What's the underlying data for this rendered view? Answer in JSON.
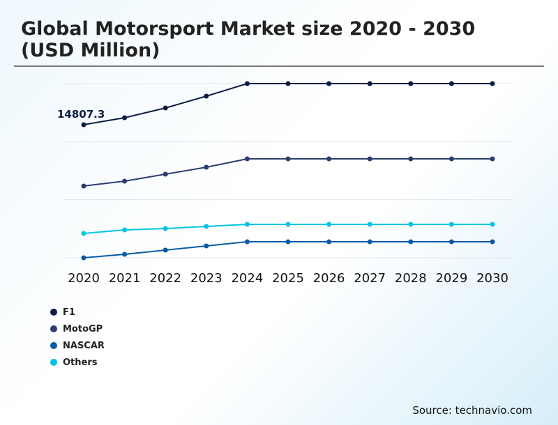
{
  "title": "Global Motorsport Market size 2020 - 2030 (USD Million)",
  "source": "Source: technavio.com",
  "chart_data": {
    "type": "line",
    "title": "Global Motorsport Market size 2020 - 2030 (USD Million)",
    "xlabel": "",
    "ylabel": "",
    "categories": [
      "2020",
      "2021",
      "2022",
      "2023",
      "2024",
      "2025",
      "2026",
      "2027",
      "2028",
      "2029",
      "2030"
    ],
    "ylim": [
      0,
      19380
    ],
    "grid": true,
    "legend_placement": "bottom-left",
    "annotation": "14807.3",
    "series": [
      {
        "name": "F1",
        "color": "#0b1d45",
        "values": [
          14807.3,
          15582,
          16667,
          17985,
          19380,
          19380,
          19380,
          19380,
          19380,
          19380,
          19380
        ]
      },
      {
        "name": "MotoGP",
        "color": "#2b3d6e",
        "values": [
          7985,
          8527,
          9302,
          10078,
          11008,
          11008,
          11008,
          11008,
          11008,
          11008,
          11008
        ]
      },
      {
        "name": "NASCAR",
        "color": "#0a5aa8",
        "values": [
          0,
          388,
          853,
          1318,
          1783,
          1783,
          1783,
          1783,
          1783,
          1783,
          1783
        ]
      },
      {
        "name": "Others",
        "color": "#00c4e6",
        "values": [
          2713,
          3101,
          3256,
          3488,
          3721,
          3721,
          3721,
          3721,
          3721,
          3721,
          3721
        ]
      }
    ]
  }
}
